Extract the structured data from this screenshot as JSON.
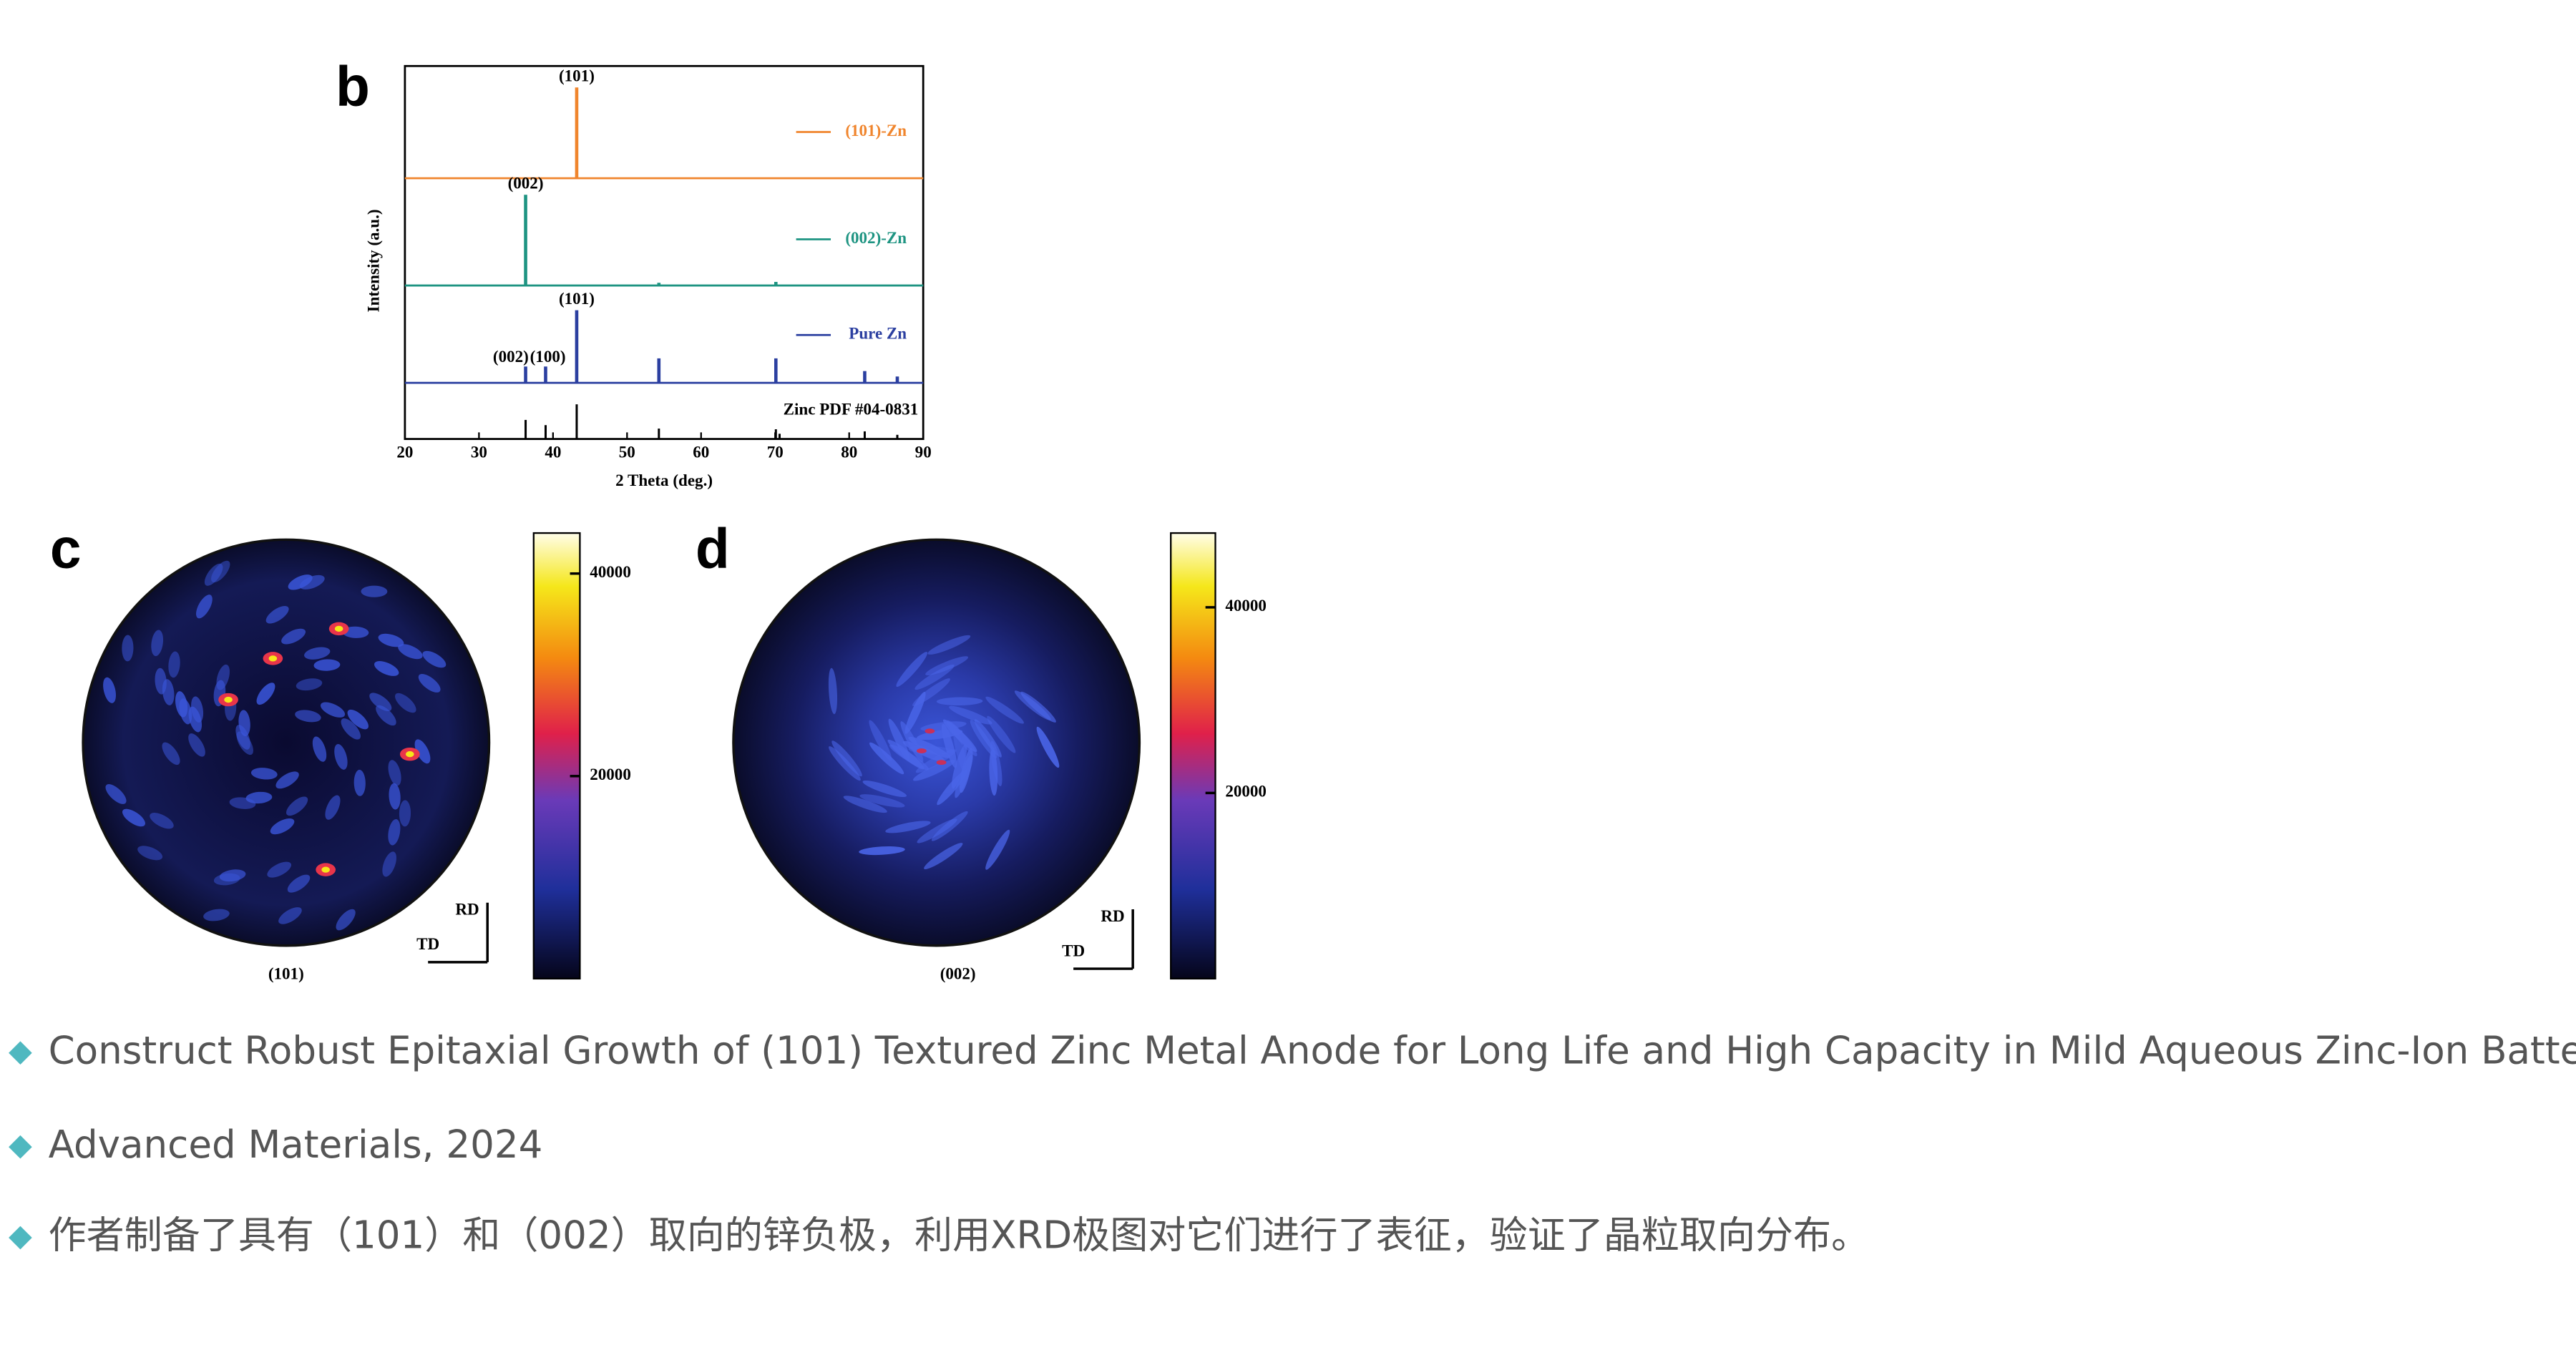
{
  "chart_data": [
    {
      "type": "stick",
      "panel_label": "b",
      "ylabel": "Intensity (a.u.)",
      "xlabel": "2 Theta (deg.)",
      "xlim": [
        20,
        90
      ],
      "xticks": [
        20,
        30,
        40,
        50,
        60,
        70,
        80,
        90
      ],
      "ylim": [
        0,
        100
      ],
      "series": [
        {
          "name": "(101)-Zn",
          "color": "#f0852d",
          "x": [
            43.2
          ],
          "values": [
            100
          ],
          "annotations": [
            {
              "x": 43.2,
              "text": "(101)"
            }
          ]
        },
        {
          "name": "(002)-Zn",
          "color": "#1e9482",
          "x": [
            36.3,
            54.3,
            70.1
          ],
          "values": [
            100,
            3,
            4
          ],
          "annotations": [
            {
              "x": 36.3,
              "text": "(002)"
            }
          ]
        },
        {
          "name": "Pure Zn",
          "color": "#2b3fa0",
          "x": [
            36.3,
            39.0,
            43.2,
            54.3,
            70.1,
            82.1,
            86.5
          ],
          "values": [
            18,
            18,
            80,
            27,
            27,
            13,
            7
          ],
          "annotations": [
            {
              "x": 43.2,
              "text": "(101)"
            },
            {
              "x": 34.3,
              "text": "(002)"
            },
            {
              "x": 39.3,
              "text": "(100)"
            }
          ]
        }
      ],
      "reference": {
        "name": "Zinc PDF #04-0831",
        "color": "#000000",
        "x": [
          36.3,
          39.0,
          43.2,
          54.3,
          70.1,
          70.6,
          82.1,
          86.5
        ],
        "values": [
          55,
          40,
          100,
          30,
          28,
          15,
          22,
          12
        ]
      }
    },
    {
      "type": "pole_figure",
      "panel_label": "c",
      "caption": "(101)",
      "clim": [
        0,
        44000
      ],
      "cticks": [
        20000,
        40000
      ],
      "rd": "RD",
      "td": "TD"
    },
    {
      "type": "pole_figure",
      "panel_label": "d",
      "caption": "(002)",
      "clim": [
        0,
        48000
      ],
      "cticks": [
        20000,
        40000
      ],
      "rd": "RD",
      "td": "TD"
    }
  ],
  "bullets": [
    "Construct Robust Epitaxial Growth of (101) Textured Zinc Metal Anode for Long Life and High Capacity in Mild Aqueous Zinc-Ion Batteries",
    "Advanced Materials, 2024",
    "作者制备了具有（101）和（002）取向的锌负极，利用XRD极图对它们进行了表征，验证了晶粒取向分布。"
  ]
}
